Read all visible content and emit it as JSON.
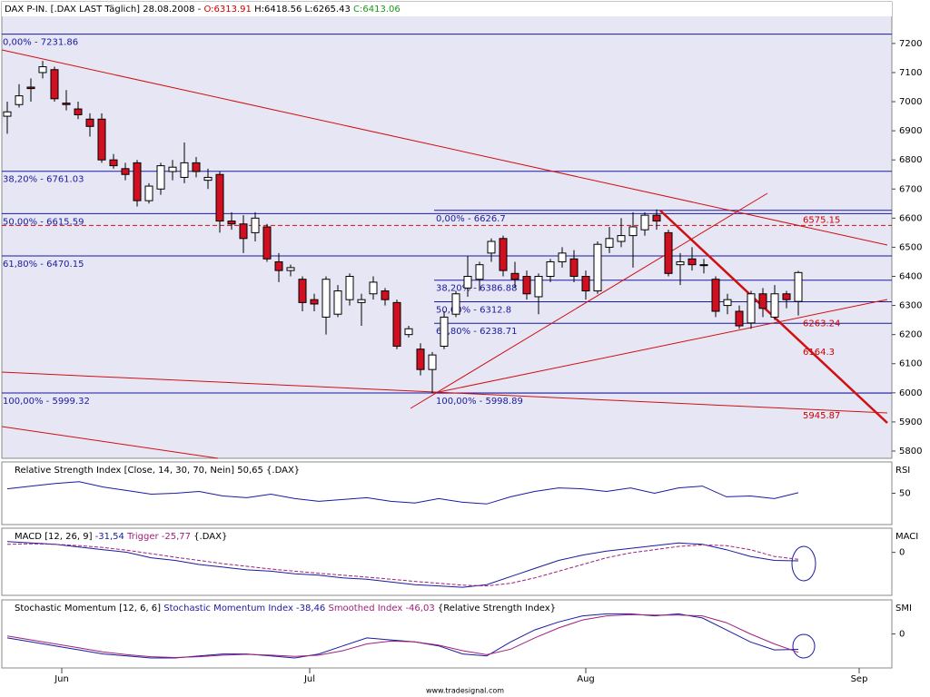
{
  "chart_data": [
    {
      "type": "candlestick",
      "title": "DAX P-IN. [.DAX LAST Täglich] 28.08.2008 -",
      "ohlc_labels": [
        "O:6313.91",
        "H:6418.56",
        "L:6265.43",
        "C:6413.06"
      ],
      "open": [
        6950,
        6990,
        7050,
        7100,
        7110,
        6995,
        6975,
        6940,
        6940,
        6800,
        6770,
        6790,
        6660,
        6700,
        6760,
        6740,
        6790,
        6730,
        6750,
        6590,
        6580,
        6550,
        6570,
        6450,
        6420,
        6390,
        6320,
        6260,
        6270,
        6320,
        6310,
        6340,
        6350,
        6310,
        6200,
        6150,
        6080,
        6160,
        6270,
        6360,
        6390,
        6480,
        6530,
        6410,
        6400,
        6330,
        6400,
        6450,
        6460,
        6400,
        6350,
        6500,
        6520,
        6540,
        6560,
        6610,
        6550,
        6440,
        6460,
        6440,
        6390,
        6300,
        6280,
        6240,
        6340,
        6260,
        6340,
        6313.91
      ],
      "high": [
        7000,
        7060,
        7080,
        7140,
        7120,
        7040,
        7000,
        6960,
        6960,
        6820,
        6790,
        6800,
        6720,
        6790,
        6800,
        6860,
        6810,
        6770,
        6760,
        6620,
        6610,
        6620,
        6580,
        6480,
        6440,
        6400,
        6340,
        6400,
        6370,
        6410,
        6340,
        6400,
        6360,
        6320,
        6230,
        6170,
        6140,
        6280,
        6350,
        6470,
        6450,
        6530,
        6540,
        6450,
        6420,
        6410,
        6460,
        6500,
        6490,
        6420,
        6520,
        6570,
        6600,
        6620,
        6620,
        6630,
        6560,
        6480,
        6500,
        6460,
        6400,
        6340,
        6300,
        6350,
        6360,
        6370,
        6350,
        6418.56
      ],
      "low": [
        6890,
        6980,
        7000,
        7080,
        7000,
        6970,
        6940,
        6880,
        6790,
        6770,
        6730,
        6640,
        6650,
        6680,
        6730,
        6720,
        6740,
        6700,
        6550,
        6560,
        6480,
        6520,
        6450,
        6380,
        6400,
        6280,
        6280,
        6200,
        6260,
        6300,
        6230,
        6320,
        6300,
        6150,
        6190,
        6060,
        5999,
        6150,
        6260,
        6330,
        6350,
        6450,
        6400,
        6360,
        6320,
        6270,
        6380,
        6430,
        6380,
        6320,
        6340,
        6480,
        6500,
        6430,
        6540,
        6560,
        6400,
        6370,
        6420,
        6410,
        6260,
        6270,
        6220,
        6220,
        6260,
        6250,
        6290,
        6265.43
      ],
      "close": [
        6965,
        7020,
        7045,
        7120,
        7010,
        6990,
        6955,
        6915,
        6800,
        6780,
        6750,
        6660,
        6710,
        6780,
        6775,
        6790,
        6760,
        6740,
        6590,
        6580,
        6530,
        6600,
        6460,
        6420,
        6430,
        6310,
        6305,
        6390,
        6350,
        6400,
        6320,
        6380,
        6320,
        6160,
        6220,
        6080,
        6130,
        6260,
        6340,
        6400,
        6440,
        6520,
        6420,
        6390,
        6340,
        6400,
        6450,
        6480,
        6400,
        6350,
        6510,
        6530,
        6540,
        6570,
        6610,
        6590,
        6410,
        6450,
        6440,
        6440,
        6280,
        6320,
        6230,
        6340,
        6290,
        6340,
        6320,
        6413.06
      ],
      "ylim": [
        5775,
        7343
      ],
      "yticks": [
        5800,
        5900,
        6000,
        6100,
        6200,
        6300,
        6400,
        6500,
        6600,
        6700,
        6800,
        6900,
        7000,
        7100,
        7200
      ],
      "fib_levels": [
        {
          "value": 7231.86,
          "label": "0,00% - 7231.86"
        },
        {
          "value": 6761.03,
          "label": "38,20% - 6761.03"
        },
        {
          "value": 6615.59,
          "label": "50,00% - 6615.59"
        },
        {
          "value": 6470.15,
          "label": "61,80% - 6470.15"
        },
        {
          "value": 5999.32,
          "label": "100,00% - 5999.32"
        }
      ],
      "fib_levels_2": [
        {
          "value": 6626.7,
          "label": "0,00% - 6626.7"
        },
        {
          "value": 6386.88,
          "label": "38,20% - 6386.88"
        },
        {
          "value": 6312.8,
          "label": "50,00% - 6312.8"
        },
        {
          "value": 6238.71,
          "label": "61,80% - 6238.71"
        },
        {
          "value": 5998.89,
          "label": "100,00% - 5998.89"
        }
      ],
      "marker_levels": [
        6575.15,
        6263.24,
        6164.3,
        5945.87
      ],
      "x_labels": [
        "Jun",
        "Jul",
        "Aug",
        "Sep"
      ],
      "footer": "www.tradesignal.com"
    },
    {
      "type": "line",
      "title_parts": [
        "Relative Strength Index [Close, 14, 30, 70, Nein] 50,65 {.DAX}"
      ],
      "axis_label": "RSI",
      "ylim": [
        15,
        85
      ],
      "yticks": [
        50
      ],
      "series": [
        {
          "color": "#1a1aa0",
          "values": [
            55,
            58,
            61,
            63,
            57,
            53,
            49,
            50,
            52,
            47,
            45,
            49,
            44,
            41,
            43,
            45,
            41,
            39,
            44,
            40,
            38,
            46,
            52,
            56,
            55,
            52,
            56,
            50,
            56,
            58,
            46,
            47,
            44,
            50.65
          ]
        }
      ]
    },
    {
      "type": "line",
      "title_parts": [
        "MACD [12, 26, 9] ",
        "-31,54 ",
        "Trigger -25,77 ",
        "{.DAX}"
      ],
      "axis_label": "MACI",
      "ylim": [
        -160,
        90
      ],
      "yticks": [
        0
      ],
      "series": [
        {
          "color": "#1a1aa0",
          "values": [
            40,
            35,
            30,
            20,
            10,
            0,
            -20,
            -30,
            -45,
            -55,
            -65,
            -70,
            -80,
            -85,
            -95,
            -100,
            -110,
            -120,
            -125,
            -130,
            -120,
            -90,
            -60,
            -30,
            -10,
            5,
            15,
            25,
            35,
            30,
            10,
            -15,
            -30,
            -31.54
          ]
        },
        {
          "color": "#a0207a",
          "dashed": true,
          "values": [
            30,
            32,
            30,
            25,
            18,
            8,
            -5,
            -18,
            -30,
            -42,
            -52,
            -62,
            -70,
            -78,
            -85,
            -92,
            -100,
            -108,
            -115,
            -122,
            -125,
            -115,
            -95,
            -70,
            -45,
            -20,
            -2,
            10,
            22,
            28,
            25,
            10,
            -15,
            -25.77
          ]
        }
      ]
    },
    {
      "type": "line",
      "title_parts": [
        "Stochastic Momentum [12, 6, 6] ",
        "Stochastic Momentum Index -38,46 ",
        "Smoothed Index -46,03 ",
        "{Relative Strength Index}"
      ],
      "axis_label": "SMI",
      "ylim": [
        -85,
        85
      ],
      "yticks": [
        0
      ],
      "series": [
        {
          "color": "#1a1aa0",
          "values": [
            -10,
            -20,
            -30,
            -40,
            -50,
            -55,
            -60,
            -60,
            -55,
            -50,
            -50,
            -55,
            -60,
            -50,
            -30,
            -10,
            -15,
            -20,
            -30,
            -50,
            -55,
            -20,
            10,
            30,
            45,
            50,
            50,
            45,
            50,
            40,
            10,
            -20,
            -40,
            -38.46
          ]
        },
        {
          "color": "#a0207a",
          "values": [
            -5,
            -15,
            -25,
            -35,
            -45,
            -52,
            -57,
            -59,
            -57,
            -53,
            -51,
            -53,
            -56,
            -53,
            -42,
            -25,
            -18,
            -20,
            -28,
            -42,
            -52,
            -38,
            -10,
            15,
            35,
            45,
            48,
            47,
            47,
            45,
            28,
            0,
            -25,
            -46.03
          ]
        }
      ]
    }
  ]
}
